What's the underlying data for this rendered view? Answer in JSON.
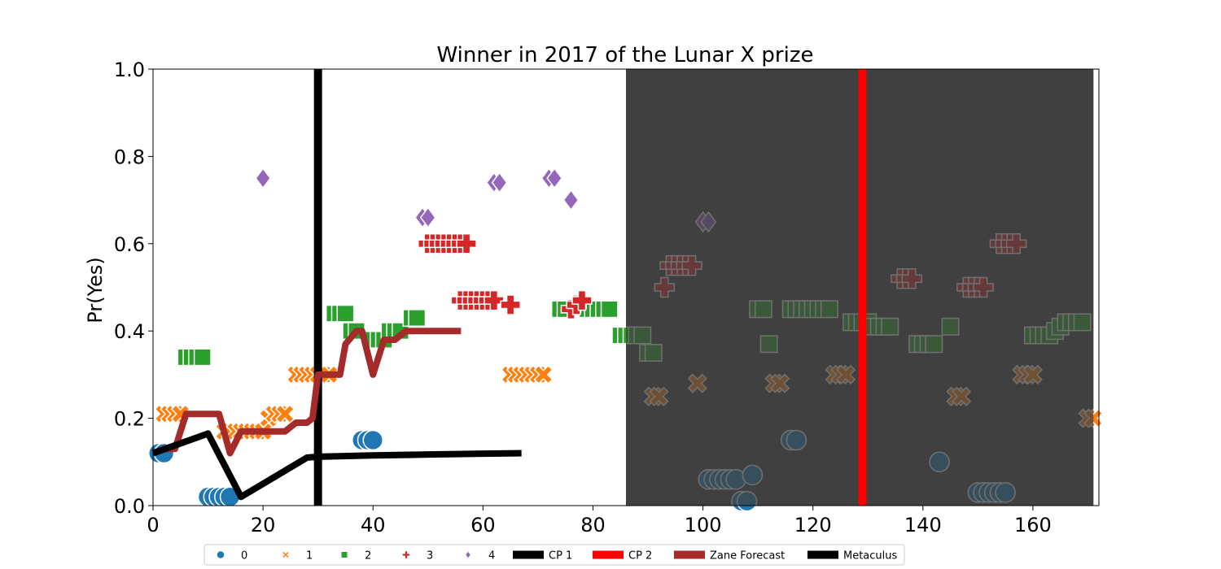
{
  "chart_data": {
    "type": "scatter",
    "title": "Winner in 2017 of the Lunar X prize",
    "xlabel": "",
    "ylabel": "Pr(Yes)",
    "xlim": [
      0,
      172
    ],
    "ylim": [
      0,
      1
    ],
    "xticks": [
      0,
      20,
      40,
      60,
      80,
      100,
      120,
      140,
      160
    ],
    "yticks": [
      0.0,
      0.2,
      0.4,
      0.6,
      0.8,
      1.0
    ],
    "xtick_labels": [
      "0",
      "20",
      "40",
      "60",
      "80",
      "100",
      "120",
      "140",
      "160"
    ],
    "ytick_labels": [
      "0.0",
      "0.2",
      "0.4",
      "0.6",
      "0.8",
      "1.0"
    ],
    "grid": false,
    "legend_position": "bottom-center",
    "shaded_region": {
      "x_start": 86,
      "x_end": 171,
      "color": "#404040"
    },
    "change_points": [
      {
        "name": "CP 1",
        "x": 30,
        "color": "#000000"
      },
      {
        "name": "CP 2",
        "x": 129,
        "color": "#ff0000"
      }
    ],
    "scatter_series": [
      {
        "name": "0",
        "marker": "circle",
        "color": "#1f77b4",
        "points": [
          [
            1,
            0.12
          ],
          [
            2,
            0.12
          ],
          [
            10,
            0.02
          ],
          [
            11,
            0.02
          ],
          [
            12,
            0.02
          ],
          [
            13,
            0.02
          ],
          [
            14,
            0.02
          ],
          [
            38,
            0.15
          ],
          [
            39,
            0.15
          ],
          [
            40,
            0.15
          ],
          [
            101,
            0.06
          ],
          [
            102,
            0.06
          ],
          [
            103,
            0.06
          ],
          [
            104,
            0.06
          ],
          [
            105,
            0.06
          ],
          [
            106,
            0.06
          ],
          [
            107,
            0.01
          ],
          [
            108,
            0.01
          ],
          [
            109,
            0.07
          ],
          [
            116,
            0.15
          ],
          [
            117,
            0.15
          ],
          [
            143,
            0.1
          ],
          [
            150,
            0.03
          ],
          [
            151,
            0.03
          ],
          [
            152,
            0.03
          ],
          [
            153,
            0.03
          ],
          [
            154,
            0.03
          ],
          [
            155,
            0.03
          ]
        ]
      },
      {
        "name": "1",
        "marker": "x",
        "color": "#ff7f0e",
        "points": [
          [
            2,
            0.21
          ],
          [
            3,
            0.21
          ],
          [
            4,
            0.21
          ],
          [
            5,
            0.21
          ],
          [
            13,
            0.17
          ],
          [
            14,
            0.17
          ],
          [
            15,
            0.17
          ],
          [
            16,
            0.17
          ],
          [
            17,
            0.17
          ],
          [
            18,
            0.17
          ],
          [
            19,
            0.17
          ],
          [
            20,
            0.17
          ],
          [
            21,
            0.2
          ],
          [
            22,
            0.21
          ],
          [
            23,
            0.21
          ],
          [
            24,
            0.21
          ],
          [
            26,
            0.3
          ],
          [
            27,
            0.3
          ],
          [
            28,
            0.3
          ],
          [
            29,
            0.3
          ],
          [
            30,
            0.3
          ],
          [
            31,
            0.3
          ],
          [
            32,
            0.3
          ],
          [
            65,
            0.3
          ],
          [
            66,
            0.3
          ],
          [
            67,
            0.3
          ],
          [
            68,
            0.3
          ],
          [
            69,
            0.3
          ],
          [
            70,
            0.3
          ],
          [
            71,
            0.3
          ],
          [
            91,
            0.25
          ],
          [
            92,
            0.25
          ],
          [
            99,
            0.28
          ],
          [
            113,
            0.28
          ],
          [
            114,
            0.28
          ],
          [
            124,
            0.3
          ],
          [
            125,
            0.3
          ],
          [
            126,
            0.3
          ],
          [
            146,
            0.25
          ],
          [
            147,
            0.25
          ],
          [
            158,
            0.3
          ],
          [
            159,
            0.3
          ],
          [
            160,
            0.3
          ],
          [
            170,
            0.2
          ],
          [
            171,
            0.2
          ]
        ]
      },
      {
        "name": "2",
        "marker": "square",
        "color": "#2ca02c",
        "points": [
          [
            6,
            0.34
          ],
          [
            7,
            0.34
          ],
          [
            8,
            0.34
          ],
          [
            9,
            0.34
          ],
          [
            33,
            0.44
          ],
          [
            34,
            0.44
          ],
          [
            35,
            0.44
          ],
          [
            36,
            0.4
          ],
          [
            37,
            0.4
          ],
          [
            40,
            0.38
          ],
          [
            41,
            0.38
          ],
          [
            42,
            0.38
          ],
          [
            43,
            0.4
          ],
          [
            44,
            0.4
          ],
          [
            45,
            0.4
          ],
          [
            47,
            0.43
          ],
          [
            48,
            0.43
          ],
          [
            74,
            0.45
          ],
          [
            75,
            0.45
          ],
          [
            79,
            0.45
          ],
          [
            80,
            0.45
          ],
          [
            81,
            0.45
          ],
          [
            82,
            0.45
          ],
          [
            83,
            0.45
          ],
          [
            85,
            0.39
          ],
          [
            86,
            0.39
          ],
          [
            87,
            0.39
          ],
          [
            88,
            0.39
          ],
          [
            89,
            0.39
          ],
          [
            90,
            0.35
          ],
          [
            91,
            0.35
          ],
          [
            110,
            0.45
          ],
          [
            111,
            0.45
          ],
          [
            112,
            0.37
          ],
          [
            116,
            0.45
          ],
          [
            117,
            0.45
          ],
          [
            118,
            0.45
          ],
          [
            119,
            0.45
          ],
          [
            120,
            0.45
          ],
          [
            121,
            0.45
          ],
          [
            122,
            0.45
          ],
          [
            123,
            0.45
          ],
          [
            127,
            0.42
          ],
          [
            128,
            0.42
          ],
          [
            129,
            0.42
          ],
          [
            130,
            0.42
          ],
          [
            131,
            0.41
          ],
          [
            132,
            0.41
          ],
          [
            133,
            0.41
          ],
          [
            134,
            0.41
          ],
          [
            139,
            0.37
          ],
          [
            140,
            0.37
          ],
          [
            141,
            0.37
          ],
          [
            142,
            0.37
          ],
          [
            145,
            0.41
          ],
          [
            160,
            0.39
          ],
          [
            161,
            0.39
          ],
          [
            162,
            0.39
          ],
          [
            163,
            0.39
          ],
          [
            164,
            0.4
          ],
          [
            165,
            0.41
          ],
          [
            166,
            0.42
          ],
          [
            167,
            0.42
          ],
          [
            168,
            0.42
          ],
          [
            169,
            0.42
          ]
        ]
      },
      {
        "name": "3",
        "marker": "plus",
        "color": "#d62728",
        "points": [
          [
            50,
            0.6
          ],
          [
            51,
            0.6
          ],
          [
            52,
            0.6
          ],
          [
            53,
            0.6
          ],
          [
            54,
            0.6
          ],
          [
            55,
            0.6
          ],
          [
            56,
            0.6
          ],
          [
            57,
            0.6
          ],
          [
            56,
            0.47
          ],
          [
            57,
            0.47
          ],
          [
            58,
            0.47
          ],
          [
            59,
            0.47
          ],
          [
            60,
            0.47
          ],
          [
            61,
            0.47
          ],
          [
            62,
            0.47
          ],
          [
            65,
            0.46
          ],
          [
            76,
            0.45
          ],
          [
            77,
            0.46
          ],
          [
            78,
            0.47
          ],
          [
            93,
            0.5
          ],
          [
            94,
            0.55
          ],
          [
            95,
            0.55
          ],
          [
            96,
            0.55
          ],
          [
            97,
            0.55
          ],
          [
            98,
            0.55
          ],
          [
            136,
            0.52
          ],
          [
            137,
            0.52
          ],
          [
            138,
            0.52
          ],
          [
            148,
            0.5
          ],
          [
            149,
            0.5
          ],
          [
            150,
            0.5
          ],
          [
            151,
            0.5
          ],
          [
            154,
            0.6
          ],
          [
            155,
            0.6
          ],
          [
            156,
            0.6
          ],
          [
            157,
            0.6
          ]
        ]
      },
      {
        "name": "4",
        "marker": "diamond",
        "color": "#9467bd",
        "points": [
          [
            20,
            0.75
          ],
          [
            49,
            0.66
          ],
          [
            50,
            0.66
          ],
          [
            62,
            0.74
          ],
          [
            63,
            0.74
          ],
          [
            72,
            0.75
          ],
          [
            73,
            0.75
          ],
          [
            76,
            0.7
          ],
          [
            100,
            0.65
          ],
          [
            101,
            0.65
          ]
        ]
      }
    ],
    "line_series": [
      {
        "name": "Zane Forecast",
        "color": "#a52a2a",
        "points": [
          [
            0,
            0.12
          ],
          [
            2,
            0.13
          ],
          [
            4,
            0.13
          ],
          [
            6,
            0.21
          ],
          [
            12,
            0.21
          ],
          [
            14,
            0.12
          ],
          [
            16,
            0.17
          ],
          [
            24,
            0.17
          ],
          [
            26,
            0.19
          ],
          [
            28,
            0.19
          ],
          [
            29,
            0.2
          ],
          [
            30,
            0.3
          ],
          [
            34,
            0.3
          ],
          [
            35,
            0.37
          ],
          [
            37,
            0.4
          ],
          [
            38,
            0.4
          ],
          [
            40,
            0.3
          ],
          [
            42,
            0.38
          ],
          [
            44,
            0.38
          ],
          [
            46,
            0.4
          ],
          [
            56,
            0.4
          ]
        ]
      },
      {
        "name": "Metaculus",
        "color": "#000000",
        "points": [
          [
            0,
            0.12
          ],
          [
            10,
            0.165
          ],
          [
            16,
            0.02
          ],
          [
            28,
            0.11
          ],
          [
            30,
            0.112
          ],
          [
            40,
            0.115
          ],
          [
            50,
            0.117
          ],
          [
            60,
            0.119
          ],
          [
            67,
            0.12
          ]
        ]
      }
    ],
    "legend": [
      {
        "label": "0",
        "kind": "circle",
        "color": "#1f77b4"
      },
      {
        "label": "1",
        "kind": "x",
        "color": "#ff7f0e"
      },
      {
        "label": "2",
        "kind": "square",
        "color": "#2ca02c"
      },
      {
        "label": "3",
        "kind": "plus",
        "color": "#d62728"
      },
      {
        "label": "4",
        "kind": "diamond",
        "color": "#9467bd"
      },
      {
        "label": "CP 1",
        "kind": "line",
        "color": "#000000"
      },
      {
        "label": "CP 2",
        "kind": "line",
        "color": "#ff0000"
      },
      {
        "label": "Zane Forecast",
        "kind": "line",
        "color": "#a52a2a"
      },
      {
        "label": "Metaculus",
        "kind": "line",
        "color": "#000000"
      }
    ]
  }
}
